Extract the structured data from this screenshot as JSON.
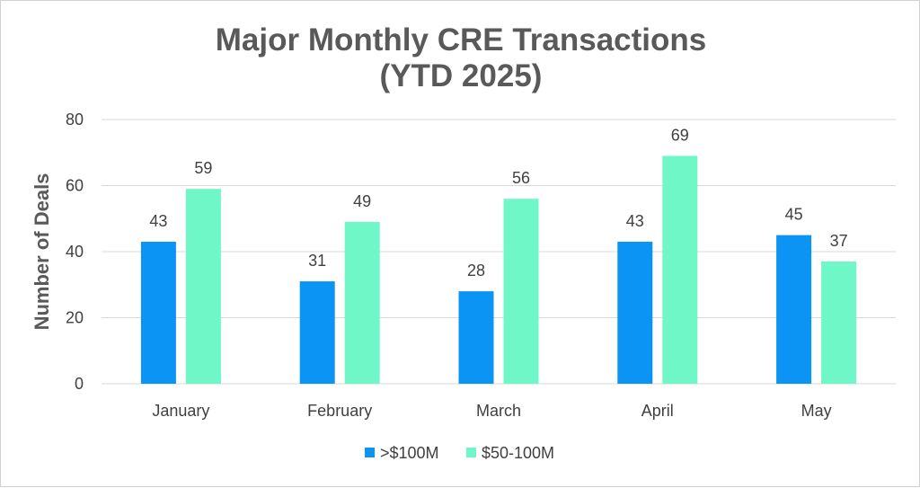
{
  "chart_data": {
    "type": "bar",
    "title": [
      "Major Monthly CRE Transactions",
      "(YTD 2025)"
    ],
    "xlabel": "",
    "ylabel": "Number of Deals",
    "categories": [
      "January",
      "February",
      "March",
      "April",
      "May"
    ],
    "series": [
      {
        "name": ">$100M",
        "values": [
          43,
          31,
          28,
          43,
          45
        ],
        "color": "#0B94F4"
      },
      {
        "name": "$50-100M",
        "values": [
          59,
          49,
          56,
          69,
          37
        ],
        "color": "#6FF7C8"
      }
    ],
    "ylim": [
      0,
      80
    ],
    "yticks": [
      0,
      20,
      40,
      60,
      80
    ],
    "grid": true,
    "data_labels": true,
    "legend_position": "bottom",
    "gridline_color": "#d9d9d9"
  }
}
